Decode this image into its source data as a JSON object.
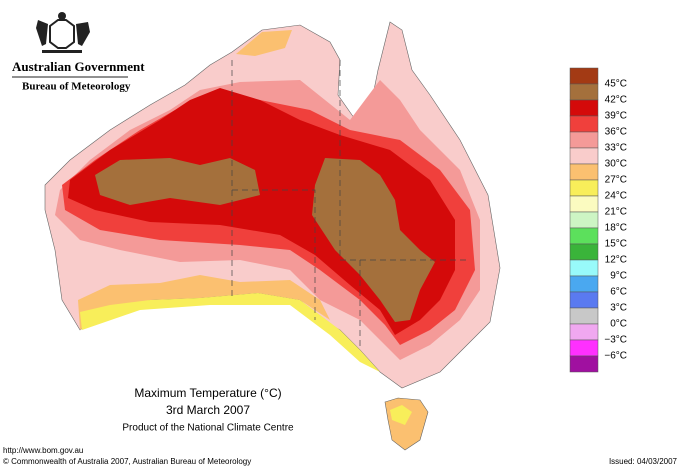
{
  "header": {
    "government": "Australian Government",
    "bureau": "Bureau of Meteorology"
  },
  "map": {
    "title": "Maximum Temperature (°C)",
    "date": "3rd March 2007",
    "product": "Product of the National Climate Centre"
  },
  "legend": {
    "labels": [
      "45°C",
      "42°C",
      "39°C",
      "36°C",
      "33°C",
      "30°C",
      "27°C",
      "24°C",
      "21°C",
      "18°C",
      "15°C",
      "12°C",
      "9°C",
      "6°C",
      "3°C",
      "0°C",
      "−3°C",
      "−6°C"
    ],
    "colors": [
      "#a33a14",
      "#a4703c",
      "#d40a0a",
      "#f0403c",
      "#f49a98",
      "#f9cccb",
      "#fbc070",
      "#f8ee5a",
      "#fbfbc0",
      "#cdf5c4",
      "#5ce05c",
      "#3ab43a",
      "#98fafa",
      "#4aa8f0",
      "#5a7af0",
      "#c8c8c8",
      "#f0a8f0",
      "#ff30ff",
      "#a010a0"
    ]
  },
  "footer": {
    "url": "http://www.bom.gov.au",
    "copyright": "© Commonwealth of Australia 2007, Australian Bureau of Meteorology",
    "issued": "Issued: 04/03/2007"
  }
}
